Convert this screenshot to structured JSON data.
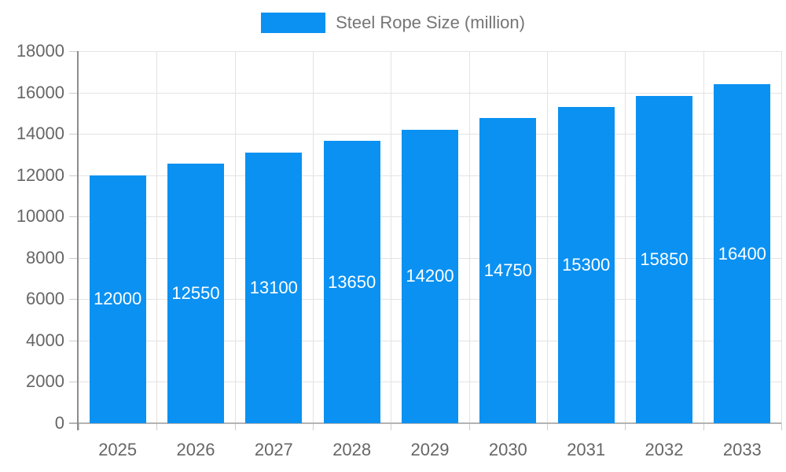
{
  "legend": {
    "label": "Steel Rope Size (million)",
    "swatch_color": "#0a91f2",
    "position": "top"
  },
  "chart_data": {
    "type": "bar",
    "title": "",
    "series_name": "Steel Rope Size (million)",
    "categories": [
      "2025",
      "2026",
      "2027",
      "2028",
      "2029",
      "2030",
      "2031",
      "2032",
      "2033"
    ],
    "values": [
      12000,
      12550,
      13100,
      13650,
      14200,
      14750,
      15300,
      15850,
      16400
    ],
    "xlabel": "",
    "ylabel": "",
    "ylim": [
      0,
      18000
    ],
    "ytick_step": 2000,
    "yticks": [
      0,
      2000,
      4000,
      6000,
      8000,
      10000,
      12000,
      14000,
      16000,
      18000
    ],
    "grid": true,
    "value_labels_shown": true,
    "legend_position": "top",
    "colors": {
      "bar": "#0a91f2",
      "value_label": "#ffffff",
      "grid_line": "#e3e3e3",
      "tick": "#cccccc",
      "axis_line": "#8c8c8c",
      "baseline": "#b3b3b3",
      "axis_label": "#666666",
      "legend_text": "#757575",
      "background": "#ffffff"
    }
  }
}
